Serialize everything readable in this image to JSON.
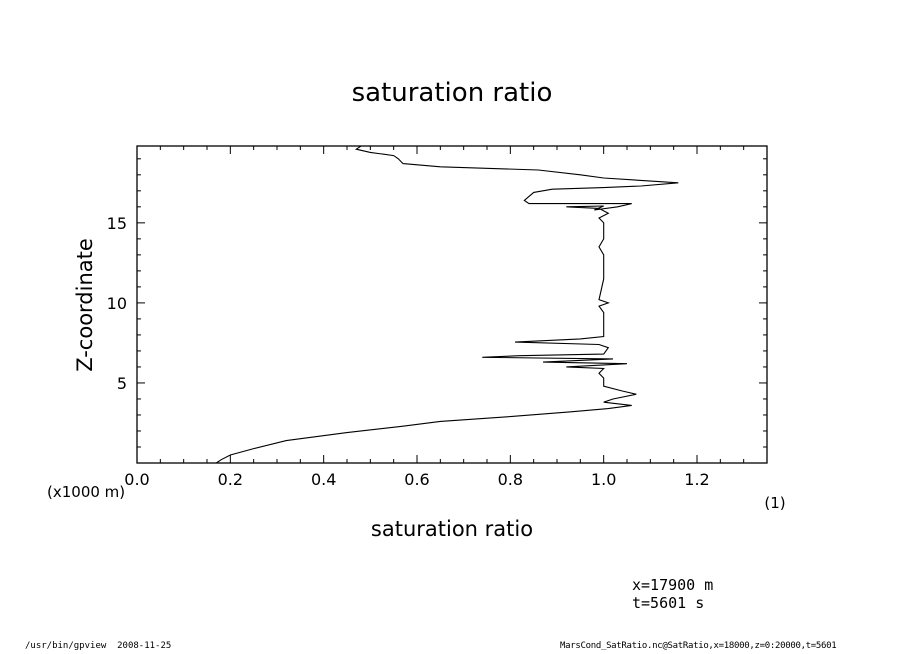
{
  "chart_data": {
    "type": "line",
    "title": "saturation ratio",
    "xlabel": "saturation ratio",
    "x_unit": "(1)",
    "ylabel": "Z-coordinate",
    "y_unit": "(x1000 m)",
    "xlim": [
      0,
      1.35
    ],
    "ylim": [
      0,
      19.8
    ],
    "x_ticks": [
      "0.0",
      "0.2",
      "0.4",
      "0.6",
      "0.8",
      "1.0",
      "1.2"
    ],
    "y_ticks": [
      "5",
      "10",
      "15"
    ],
    "grid": false,
    "series": [
      {
        "points": [
          [
            0.17,
            0.0
          ],
          [
            0.18,
            0.2
          ],
          [
            0.2,
            0.5
          ],
          [
            0.25,
            0.9
          ],
          [
            0.32,
            1.4
          ],
          [
            0.45,
            1.9
          ],
          [
            0.57,
            2.3
          ],
          [
            0.65,
            2.6
          ],
          [
            0.8,
            2.9
          ],
          [
            0.93,
            3.2
          ],
          [
            1.01,
            3.4
          ],
          [
            1.06,
            3.6
          ],
          [
            1.0,
            3.8
          ],
          [
            1.02,
            4.0
          ],
          [
            1.07,
            4.3
          ],
          [
            1.04,
            4.5
          ],
          [
            1.0,
            4.8
          ],
          [
            1.0,
            5.3
          ],
          [
            0.99,
            5.6
          ],
          [
            1.0,
            5.9
          ],
          [
            0.92,
            6.0
          ],
          [
            1.05,
            6.2
          ],
          [
            0.87,
            6.3
          ],
          [
            1.02,
            6.5
          ],
          [
            0.74,
            6.6
          ],
          [
            0.82,
            6.7
          ],
          [
            1.0,
            6.8
          ],
          [
            1.01,
            7.2
          ],
          [
            0.99,
            7.4
          ],
          [
            0.81,
            7.55
          ],
          [
            0.95,
            7.75
          ],
          [
            1.0,
            7.9
          ],
          [
            1.0,
            8.5
          ],
          [
            1.0,
            9.4
          ],
          [
            0.99,
            9.8
          ],
          [
            1.01,
            10.0
          ],
          [
            0.99,
            10.2
          ],
          [
            1.0,
            11.5
          ],
          [
            1.0,
            13.0
          ],
          [
            0.99,
            13.5
          ],
          [
            1.0,
            14.0
          ],
          [
            1.0,
            15.0
          ],
          [
            0.99,
            15.3
          ],
          [
            1.01,
            15.6
          ],
          [
            0.99,
            15.9
          ],
          [
            0.92,
            16.0
          ],
          [
            1.0,
            16.05
          ],
          [
            0.98,
            15.8
          ],
          [
            1.03,
            16.0
          ],
          [
            1.06,
            16.2
          ],
          [
            0.84,
            16.2
          ],
          [
            0.83,
            16.4
          ],
          [
            0.85,
            16.9
          ],
          [
            0.89,
            17.1
          ],
          [
            1.0,
            17.2
          ],
          [
            1.08,
            17.3
          ],
          [
            1.16,
            17.5
          ],
          [
            1.0,
            17.8
          ],
          [
            0.95,
            18.0
          ],
          [
            0.86,
            18.3
          ],
          [
            0.65,
            18.5
          ],
          [
            0.57,
            18.7
          ],
          [
            0.56,
            19.0
          ],
          [
            0.55,
            19.2
          ],
          [
            0.5,
            19.4
          ],
          [
            0.47,
            19.6
          ],
          [
            0.48,
            19.8
          ]
        ]
      }
    ]
  },
  "annotations": {
    "x_info": "x=17900 m",
    "t_info": "t=5601 s",
    "footer_left": "/usr/bin/gpview  2008-11-25",
    "footer_right": "MarsCond_SatRatio.nc@SatRatio,x=18000,z=0:20000,t=5601"
  }
}
